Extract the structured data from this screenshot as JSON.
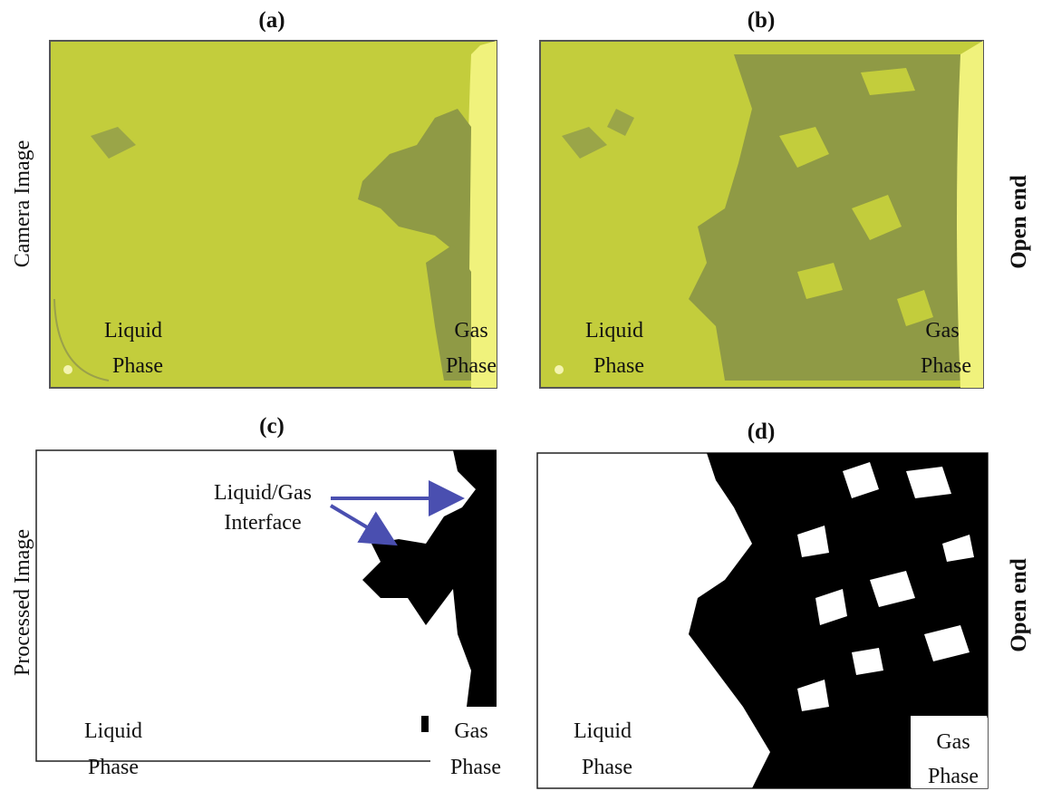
{
  "row_labels": [
    "Camera Image",
    "Processed Image"
  ],
  "side_labels": [
    "Open end",
    "Open end"
  ],
  "panels": [
    {
      "label": "(a)",
      "liquid_label": [
        "Liquid",
        "Phase"
      ],
      "gas_label": [
        "Gas",
        "Phase"
      ]
    },
    {
      "label": "(b)",
      "liquid_label": [
        "Liquid",
        "Phase"
      ],
      "gas_label": [
        "Gas",
        "Phase"
      ]
    },
    {
      "label": "(c)",
      "liquid_label": [
        "Liquid",
        "Phase"
      ],
      "gas_label": [
        "Gas",
        "Phase"
      ]
    },
    {
      "label": "(d)",
      "liquid_label": [
        "Liquid",
        "Phase"
      ],
      "gas_label": [
        "Gas",
        "Phase"
      ]
    }
  ],
  "annotation": [
    "Liquid/Gas",
    "Interface"
  ]
}
